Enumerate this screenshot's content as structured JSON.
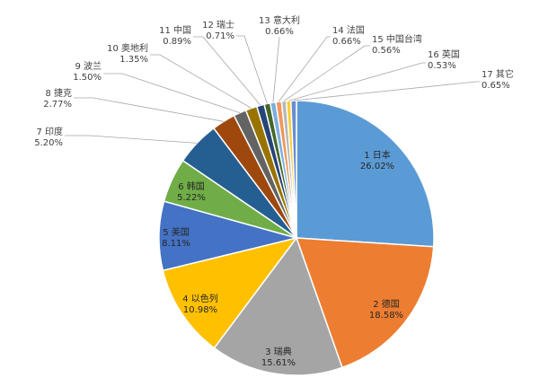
{
  "chart_data": {
    "type": "pie",
    "title": "",
    "start_angle_deg": 0,
    "direction": "clockwise",
    "categories": [
      "1 日本",
      "2 德国",
      "3 瑞典",
      "4 以色列",
      "5 美国",
      "6 韩国",
      "7 印度",
      "8 捷克",
      "9 波兰",
      "10 奥地利",
      "11 中国",
      "12 瑞士",
      "13 意大利",
      "14 法国",
      "15 中国台湾",
      "16 英国",
      "17 其它"
    ],
    "values": [
      26.02,
      18.58,
      15.61,
      10.98,
      8.11,
      5.22,
      5.2,
      2.77,
      1.5,
      1.35,
      0.89,
      0.71,
      0.66,
      0.66,
      0.56,
      0.53,
      0.65
    ],
    "value_labels": [
      "26.02%",
      "18.58%",
      "15.61%",
      "10.98%",
      "8.11%",
      "5.22%",
      "5.20%",
      "2.77%",
      "1.50%",
      "1.35%",
      "0.89%",
      "0.71%",
      "0.66%",
      "0.66%",
      "0.56%",
      "0.53%",
      "0.65%"
    ],
    "colors": [
      "#5b9bd5",
      "#ed7d31",
      "#a5a5a5",
      "#ffc000",
      "#4472c4",
      "#70ad47",
      "#255e91",
      "#9e480e",
      "#636363",
      "#997300",
      "#264478",
      "#43682b",
      "#7cafdd",
      "#f1975a",
      "#b7b7b7",
      "#ffcd33",
      "#698ed0"
    ],
    "label_placement": "inside for large slices, outside with leader lines for small slices"
  }
}
